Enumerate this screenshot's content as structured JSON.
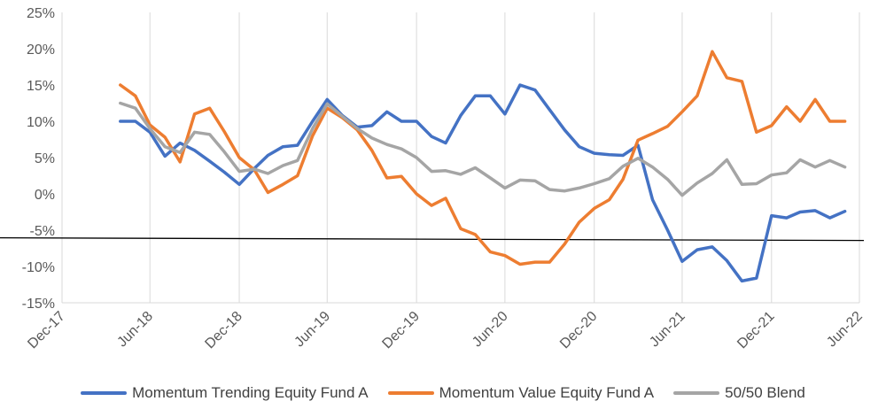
{
  "chart_data": {
    "type": "line",
    "title": "",
    "xlabel": "",
    "ylabel": "",
    "ylim": [
      -15,
      25
    ],
    "y_ticks": [
      "-15%",
      "-10%",
      "-5%",
      "0%",
      "5%",
      "10%",
      "15%",
      "20%",
      "25%"
    ],
    "x_ticks": [
      "Dec-17",
      "Jun-18",
      "Dec-18",
      "Jun-19",
      "Dec-19",
      "Jun-20",
      "Dec-20",
      "Jun-21",
      "Dec-21",
      "Jun-22"
    ],
    "x_start": "Dec-17",
    "x_end": "Jun-22",
    "grid": "vertical",
    "legend_position": "bottom",
    "reference_line": {
      "y": -6.3
    },
    "series": [
      {
        "name": "Momentum Trending Equity Fund A",
        "color": "#4472C4",
        "x": [
          "2018-04-30",
          "2018-05-31",
          "2018-06-30",
          "2018-07-31",
          "2018-08-31",
          "2018-09-30",
          "2018-10-31",
          "2018-11-30",
          "2018-12-31",
          "2019-01-31",
          "2019-02-28",
          "2019-03-31",
          "2019-04-30",
          "2019-05-31",
          "2019-06-30",
          "2019-07-31",
          "2019-08-31",
          "2019-09-30",
          "2019-10-31",
          "2019-11-30",
          "2019-12-31",
          "2020-01-31",
          "2020-02-29",
          "2020-03-31",
          "2020-04-30",
          "2020-05-31",
          "2020-06-30",
          "2020-07-31",
          "2020-08-31",
          "2020-09-30",
          "2020-10-31",
          "2020-11-30",
          "2020-12-31",
          "2021-01-31",
          "2021-02-28",
          "2021-03-31",
          "2021-04-30",
          "2021-05-31",
          "2021-06-30",
          "2021-07-31",
          "2021-08-31",
          "2021-09-30",
          "2021-10-31",
          "2021-11-30",
          "2021-12-31",
          "2022-01-31",
          "2022-02-28",
          "2022-03-31",
          "2022-04-30",
          "2022-05-31"
        ],
        "y": [
          10.0,
          10.0,
          8.5,
          5.2,
          7.0,
          6.0,
          4.5,
          3.0,
          1.3,
          3.5,
          5.3,
          6.5,
          6.7,
          10.0,
          13.0,
          10.8,
          9.2,
          9.4,
          11.3,
          10.0,
          10.0,
          7.9,
          7.0,
          10.8,
          13.5,
          13.5,
          11.0,
          15.0,
          14.3,
          11.6,
          8.8,
          6.5,
          5.6,
          5.4,
          5.3,
          6.7,
          -0.8,
          -5.0,
          -9.3,
          -7.7,
          -7.3,
          -9.2,
          -12.0,
          -11.6,
          -3.0,
          -3.3,
          -2.5,
          -2.3,
          -3.3,
          -2.4
        ]
      },
      {
        "name": "Momentum Value Equity Fund A",
        "color": "#ED7D31",
        "x": [
          "2018-04-30",
          "2018-05-31",
          "2018-06-30",
          "2018-07-31",
          "2018-08-31",
          "2018-09-30",
          "2018-10-31",
          "2018-11-30",
          "2018-12-31",
          "2019-01-31",
          "2019-02-28",
          "2019-03-31",
          "2019-04-30",
          "2019-05-31",
          "2019-06-30",
          "2019-07-31",
          "2019-08-31",
          "2019-09-30",
          "2019-10-31",
          "2019-11-30",
          "2019-12-31",
          "2020-01-31",
          "2020-02-29",
          "2020-03-31",
          "2020-04-30",
          "2020-05-31",
          "2020-06-30",
          "2020-07-31",
          "2020-08-31",
          "2020-09-30",
          "2020-10-31",
          "2020-11-30",
          "2020-12-31",
          "2021-01-31",
          "2021-02-28",
          "2021-03-31",
          "2021-04-30",
          "2021-05-31",
          "2021-06-30",
          "2021-07-31",
          "2021-08-31",
          "2021-09-30",
          "2021-10-31",
          "2021-11-30",
          "2021-12-31",
          "2022-01-31",
          "2022-02-28",
          "2022-03-31",
          "2022-04-30",
          "2022-05-31"
        ],
        "y": [
          15.0,
          13.5,
          9.5,
          7.8,
          4.4,
          11.0,
          11.8,
          8.6,
          5.0,
          3.3,
          0.2,
          1.3,
          2.5,
          8.0,
          11.8,
          10.5,
          8.8,
          6.0,
          2.2,
          2.4,
          0.0,
          -1.6,
          -0.6,
          -4.8,
          -5.6,
          -8.0,
          -8.5,
          -9.7,
          -9.4,
          -9.4,
          -6.9,
          -3.9,
          -2.0,
          -0.8,
          2.0,
          7.4,
          8.3,
          9.3,
          11.3,
          13.5,
          19.6,
          16.0,
          15.5,
          8.5,
          9.4,
          12.0,
          10.0,
          13.0,
          10.0,
          10.0
        ]
      },
      {
        "name": "50/50 Blend",
        "color": "#A5A5A5",
        "x": [
          "2018-04-30",
          "2018-05-31",
          "2018-06-30",
          "2018-07-31",
          "2018-08-31",
          "2018-09-30",
          "2018-10-31",
          "2018-11-30",
          "2018-12-31",
          "2019-01-31",
          "2019-02-28",
          "2019-03-31",
          "2019-04-30",
          "2019-05-31",
          "2019-06-30",
          "2019-07-31",
          "2019-08-31",
          "2019-09-30",
          "2019-10-31",
          "2019-11-30",
          "2019-12-31",
          "2020-01-31",
          "2020-02-29",
          "2020-03-31",
          "2020-04-30",
          "2020-05-31",
          "2020-06-30",
          "2020-07-31",
          "2020-08-31",
          "2020-09-30",
          "2020-10-31",
          "2020-11-30",
          "2020-12-31",
          "2021-01-31",
          "2021-02-28",
          "2021-03-31",
          "2021-04-30",
          "2021-05-31",
          "2021-06-30",
          "2021-07-31",
          "2021-08-31",
          "2021-09-30",
          "2021-10-31",
          "2021-11-30",
          "2021-12-31",
          "2022-01-31",
          "2022-02-28",
          "2022-03-31",
          "2022-04-30",
          "2022-05-31"
        ],
        "y": [
          12.5,
          11.8,
          9.0,
          6.5,
          5.7,
          8.5,
          8.2,
          5.8,
          3.1,
          3.4,
          2.8,
          3.9,
          4.6,
          9.0,
          12.4,
          10.7,
          9.0,
          7.7,
          6.8,
          6.2,
          5.0,
          3.1,
          3.2,
          2.7,
          3.6,
          2.2,
          0.8,
          1.9,
          1.8,
          0.6,
          0.4,
          0.8,
          1.4,
          2.1,
          3.8,
          4.9,
          3.7,
          2.0,
          -0.2,
          1.5,
          2.8,
          4.7,
          1.3,
          1.4,
          2.6,
          2.9,
          4.7,
          3.7,
          4.6,
          3.7
        ]
      }
    ]
  }
}
